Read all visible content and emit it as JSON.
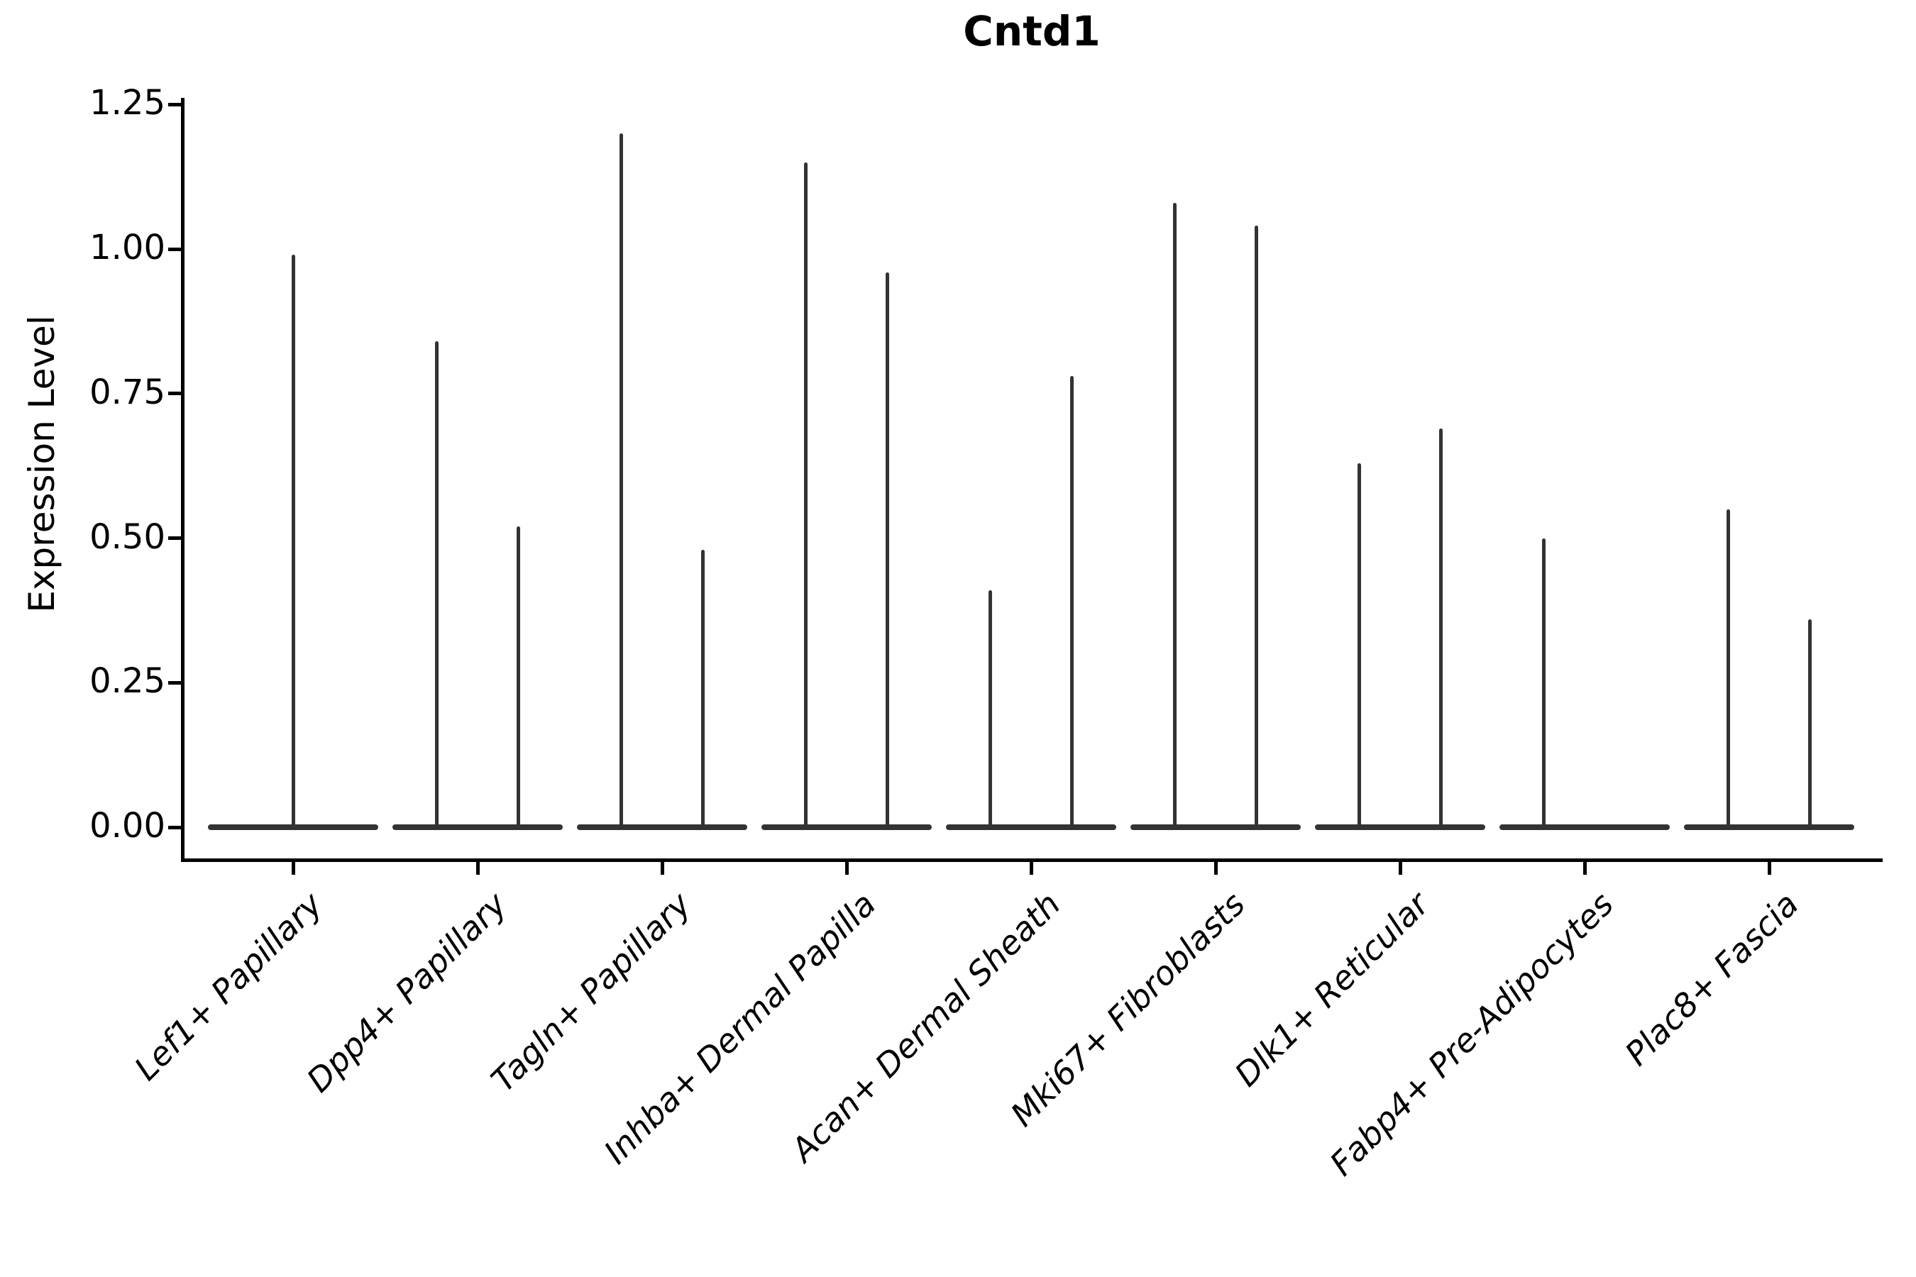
{
  "figure": {
    "title": "Cntd1",
    "y_axis_label": "Expression Level"
  },
  "chart_data": {
    "type": "violin",
    "title": "Cntd1",
    "xlabel": "",
    "ylabel": "Expression Level",
    "ylim": [
      -0.05,
      1.26
    ],
    "yticks": [
      1.25,
      1.0,
      0.75,
      0.5,
      0.25,
      0.0
    ],
    "ytick_labels": [
      "1.25",
      "1.00",
      "0.75",
      "0.50",
      "0.25",
      "0.00"
    ],
    "grid": false,
    "legend_position": "none",
    "violin_color": "#333333",
    "axis_color": "#000000",
    "categories": [
      "Lef1+ Papillary",
      "Dpp4+ Papillary",
      "Tagln+ Papillary",
      "Inhba+ Dermal Papilla",
      "Acan+ Dermal Sheath",
      "Mki67+ Fibroblasts",
      "Dlk1+ Reticular",
      "Fabp4+ Pre-Adipocytes",
      "Plac8+ Fascia"
    ],
    "violins": [
      {
        "category": "Lef1+ Papillary",
        "base_value": 0.0,
        "spikes": [
          {
            "offset": 0.0,
            "max": 0.99
          }
        ]
      },
      {
        "category": "Dpp4+ Papillary",
        "base_value": 0.0,
        "spikes": [
          {
            "offset": -0.22,
            "max": 0.84
          },
          {
            "offset": 0.22,
            "max": 0.52
          }
        ]
      },
      {
        "category": "Tagln+ Papillary",
        "base_value": 0.0,
        "spikes": [
          {
            "offset": -0.22,
            "max": 1.2
          },
          {
            "offset": 0.22,
            "max": 0.48
          }
        ]
      },
      {
        "category": "Inhba+ Dermal Papilla",
        "base_value": 0.0,
        "spikes": [
          {
            "offset": -0.22,
            "max": 1.15
          },
          {
            "offset": 0.22,
            "max": 0.96
          }
        ]
      },
      {
        "category": "Acan+ Dermal Sheath",
        "base_value": 0.0,
        "spikes": [
          {
            "offset": -0.22,
            "max": 0.41
          },
          {
            "offset": 0.22,
            "max": 0.78
          }
        ]
      },
      {
        "category": "Mki67+ Fibroblasts",
        "base_value": 0.0,
        "spikes": [
          {
            "offset": -0.22,
            "max": 1.08
          },
          {
            "offset": 0.22,
            "max": 1.04
          }
        ]
      },
      {
        "category": "Dlk1+ Reticular",
        "base_value": 0.0,
        "spikes": [
          {
            "offset": -0.22,
            "max": 0.63
          },
          {
            "offset": 0.22,
            "max": 0.69
          }
        ]
      },
      {
        "category": "Fabp4+ Pre-Adipocytes",
        "base_value": 0.0,
        "spikes": [
          {
            "offset": -0.22,
            "max": 0.5
          }
        ]
      },
      {
        "category": "Plac8+ Fascia",
        "base_value": 0.0,
        "spikes": [
          {
            "offset": -0.22,
            "max": 0.55
          },
          {
            "offset": 0.22,
            "max": 0.36
          }
        ]
      }
    ]
  }
}
